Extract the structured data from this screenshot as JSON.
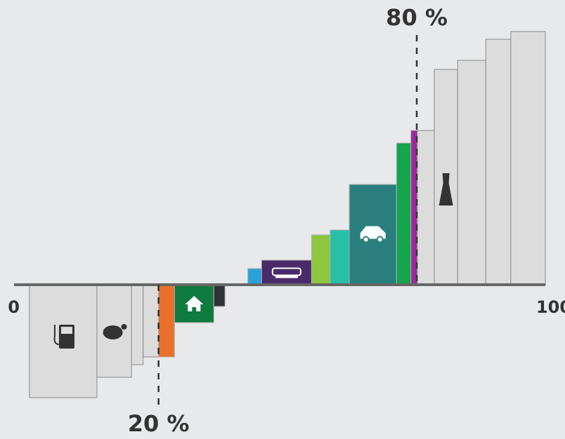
{
  "chart_data": {
    "type": "histogram",
    "bins": [
      2.9,
      15.6,
      22.1,
      24.3,
      27.2,
      30.2,
      37.6,
      39.7,
      44.0,
      46.6,
      56.0,
      59.5,
      63.1,
      72.0,
      74.7,
      75.9,
      79.1,
      83.5,
      88.8,
      93.5,
      100
    ],
    "values": [
      -161,
      -132,
      -114,
      -103,
      -103,
      -54,
      -31,
      null,
      23,
      35,
      71,
      78,
      143,
      202,
      220,
      220,
      307,
      320,
      350,
      361
    ],
    "colors": [
      "#dcdcdc",
      "#dcdcdc",
      "#dcdcdc",
      "#dcdcdc",
      "#e8702a",
      "#0f7b3e",
      "#2e3236",
      null,
      "#29a3db",
      "#4a2a6a",
      "#8dc63f",
      "#27bfa6",
      "#2a7f7e",
      "#13a64a",
      "#9b2a9b",
      "#dcdcdc",
      "#dcdcdc",
      "#dcdcdc",
      "#dcdcdc",
      "#dcdcdc"
    ],
    "xlim": [
      0,
      100
    ],
    "ylim": [
      -220,
      406
    ],
    "xticks": [
      0,
      100
    ],
    "annotations": [
      {
        "text": "20 %",
        "x": 27.2
      },
      {
        "text": "80 %",
        "x": 75.8
      }
    ]
  }
}
